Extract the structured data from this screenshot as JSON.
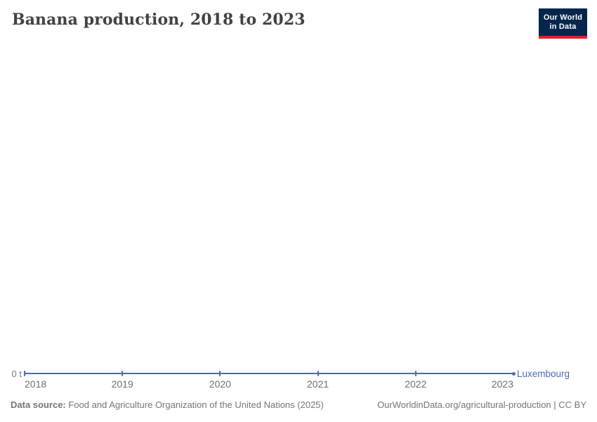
{
  "header": {
    "title": "Banana production, 2018 to 2023"
  },
  "logo": {
    "line1": "Our World",
    "line2": "in Data",
    "bg_color": "#04264c",
    "bar_color": "#e02428"
  },
  "chart_data": {
    "type": "line",
    "title": "Banana production, 2018 to 2023",
    "x": [
      2018,
      2019,
      2020,
      2021,
      2022,
      2023
    ],
    "series": [
      {
        "name": "Luxembourg",
        "values": [
          0,
          0,
          0,
          0,
          0,
          0
        ],
        "color": "#4c6ba9"
      }
    ],
    "xlabel": "",
    "ylabel": "",
    "y_unit": "t",
    "y_tick_labels": [
      "0 t"
    ],
    "ylim": [
      0,
      0
    ],
    "x_range": [
      2018,
      2023
    ],
    "grid": false,
    "legend_position": "end-of-line"
  },
  "axis": {
    "zero_label": "0 t"
  },
  "entity_label": {
    "text": "Luxembourg",
    "color": "#4c6ba9"
  },
  "footer": {
    "source_label": "Data source:",
    "source_text": " Food and Agriculture Organization of the United Nations (2025)",
    "link_text": "OurWorldinData.org/agricultural-production | CC BY"
  }
}
